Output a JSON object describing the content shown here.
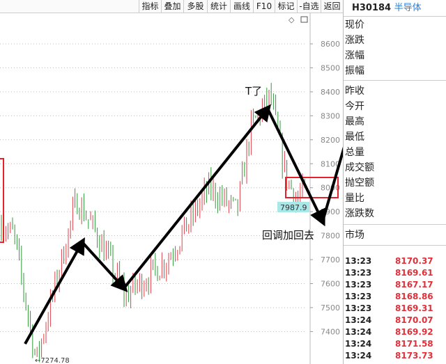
{
  "toolbar": {
    "buttons": [
      "指标",
      "叠加",
      "多股",
      "统计",
      "画线",
      "F10",
      "标记",
      "-自选",
      "返回"
    ]
  },
  "stock": {
    "code": "H30184",
    "name": "半导体"
  },
  "panel": {
    "group1": [
      "现价",
      "涨跌",
      "涨幅",
      "振幅"
    ],
    "group2": [
      "昨收",
      "今开",
      "最高",
      "最低",
      "总量",
      "成交额",
      "抛空额",
      "量比",
      "涨跌数"
    ],
    "market": "市场",
    "ticks": [
      {
        "time": "13:23",
        "price": "8170.37"
      },
      {
        "time": "13:23",
        "price": "8169.61"
      },
      {
        "time": "13:23",
        "price": "8167.17"
      },
      {
        "time": "13:23",
        "price": "8168.86"
      },
      {
        "time": "13:23",
        "price": "8169.31"
      },
      {
        "time": "13:24",
        "price": "8170.07"
      },
      {
        "time": "13:24",
        "price": "8169.92"
      },
      {
        "time": "13:24",
        "price": "8171.58"
      },
      {
        "time": "13:24",
        "price": "8173.73"
      }
    ]
  },
  "chart_data": {
    "type": "candlestick",
    "y_ticks": [
      "8600",
      "8500",
      "8400",
      "8300",
      "8200",
      "8100",
      "8000",
      "7900",
      "7800",
      "7700",
      "7600",
      "7500",
      "7400"
    ],
    "ylim": [
      7250,
      8700
    ],
    "low_label": "←7274.78",
    "current_label": "7987.9",
    "key_prices": [
      7850,
      7800,
      7275,
      7600,
      7950,
      7800,
      7550,
      7700,
      8000,
      7900,
      8250,
      8380,
      8050,
      7950,
      8000,
      8000
    ],
    "annotations": [
      "T了",
      "回调加回去"
    ],
    "colors": {
      "up": "#e0404a",
      "down": "#2f9a3a",
      "box": "#e8202a",
      "current_bg": "#a8e8e8"
    }
  }
}
